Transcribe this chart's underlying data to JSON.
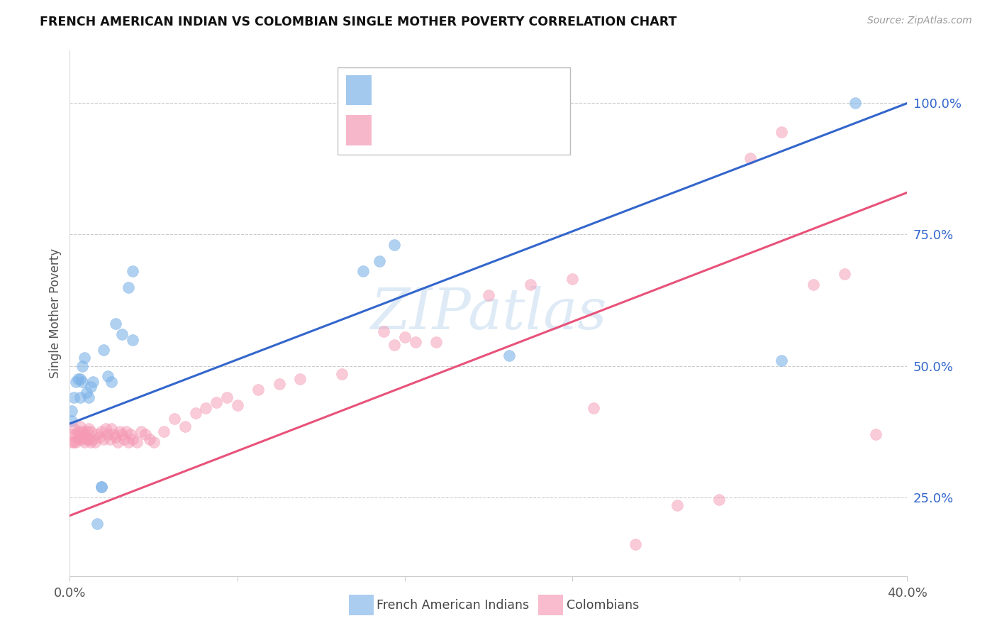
{
  "title": "FRENCH AMERICAN INDIAN VS COLOMBIAN SINGLE MOTHER POVERTY CORRELATION CHART",
  "source": "Source: ZipAtlas.com",
  "ylabel": "Single Mother Poverty",
  "xlim": [
    0.0,
    0.4
  ],
  "ylim": [
    0.1,
    1.1
  ],
  "xticks": [
    0.0,
    0.08,
    0.16,
    0.24,
    0.32,
    0.4
  ],
  "xticklabels": [
    "0.0%",
    "",
    "",
    "",
    "",
    "40.0%"
  ],
  "yticks_right": [
    0.25,
    0.5,
    0.75,
    1.0
  ],
  "ytick_labels_right": [
    "25.0%",
    "50.0%",
    "75.0%",
    "100.0%"
  ],
  "legend_label1": "French American Indians",
  "legend_label2": "Colombians",
  "watermark": "ZIPatlas",
  "blue_color": "#7EB3E8",
  "pink_color": "#F599B4",
  "blue_line_color": "#3366CC",
  "pink_line_color": "#E8527A",
  "blue_legend_color": "#3366CC",
  "pink_legend_color": "#E8527A",
  "blue_line_x0": 0.0,
  "blue_line_y0": 0.39,
  "blue_line_x1": 0.4,
  "blue_line_y1": 1.0,
  "pink_line_x0": 0.0,
  "pink_line_y0": 0.215,
  "pink_line_x1": 0.4,
  "pink_line_y1": 0.83,
  "blue_x": [
    0.001,
    0.001,
    0.002,
    0.003,
    0.004,
    0.005,
    0.005,
    0.006,
    0.006,
    0.007,
    0.008,
    0.009,
    0.01,
    0.011,
    0.013,
    0.015,
    0.015,
    0.016,
    0.018,
    0.02,
    0.022,
    0.025,
    0.028,
    0.03,
    0.03,
    0.14,
    0.148,
    0.155,
    0.21,
    0.34,
    0.375
  ],
  "blue_y": [
    0.395,
    0.415,
    0.44,
    0.47,
    0.475,
    0.475,
    0.44,
    0.47,
    0.5,
    0.515,
    0.45,
    0.44,
    0.46,
    0.47,
    0.2,
    0.27,
    0.27,
    0.53,
    0.48,
    0.47,
    0.58,
    0.56,
    0.65,
    0.55,
    0.68,
    0.68,
    0.7,
    0.73,
    0.52,
    0.51,
    1.0
  ],
  "pink_x": [
    0.001,
    0.001,
    0.002,
    0.002,
    0.003,
    0.003,
    0.004,
    0.004,
    0.005,
    0.005,
    0.006,
    0.006,
    0.007,
    0.007,
    0.008,
    0.008,
    0.009,
    0.009,
    0.01,
    0.01,
    0.011,
    0.012,
    0.013,
    0.014,
    0.015,
    0.016,
    0.017,
    0.018,
    0.019,
    0.02,
    0.021,
    0.022,
    0.023,
    0.024,
    0.025,
    0.026,
    0.027,
    0.028,
    0.029,
    0.03,
    0.032,
    0.034,
    0.036,
    0.038,
    0.04,
    0.045,
    0.05,
    0.055,
    0.06,
    0.065,
    0.07,
    0.075,
    0.08,
    0.09,
    0.1,
    0.11,
    0.13,
    0.155,
    0.175,
    0.2,
    0.22,
    0.24,
    0.27,
    0.29,
    0.31,
    0.325,
    0.34,
    0.355,
    0.37,
    0.385,
    0.15,
    0.16,
    0.165,
    0.25
  ],
  "pink_y": [
    0.355,
    0.37,
    0.355,
    0.38,
    0.355,
    0.37,
    0.36,
    0.375,
    0.365,
    0.385,
    0.36,
    0.375,
    0.355,
    0.37,
    0.36,
    0.375,
    0.36,
    0.38,
    0.355,
    0.375,
    0.36,
    0.355,
    0.37,
    0.365,
    0.375,
    0.36,
    0.38,
    0.37,
    0.36,
    0.38,
    0.37,
    0.365,
    0.355,
    0.375,
    0.37,
    0.36,
    0.375,
    0.355,
    0.37,
    0.36,
    0.355,
    0.375,
    0.37,
    0.36,
    0.355,
    0.375,
    0.4,
    0.385,
    0.41,
    0.42,
    0.43,
    0.44,
    0.425,
    0.455,
    0.465,
    0.475,
    0.485,
    0.54,
    0.545,
    0.635,
    0.655,
    0.665,
    0.16,
    0.235,
    0.245,
    0.895,
    0.945,
    0.655,
    0.675,
    0.37,
    0.565,
    0.555,
    0.545,
    0.42
  ]
}
